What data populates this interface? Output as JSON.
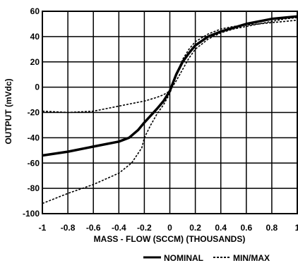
{
  "chart_data": {
    "type": "line",
    "title": "",
    "xlabel": "MASS - FLOW (SCCM)  (THOUSANDS)",
    "ylabel": "OUTPUT (mVdc)",
    "xlim": [
      -1,
      1
    ],
    "ylim": [
      -100,
      60
    ],
    "x_ticks": [
      -1,
      -0.8,
      -0.6,
      -0.4,
      -0.2,
      0,
      0.2,
      0.4,
      0.6,
      0.8,
      1
    ],
    "x_tick_labels": [
      "-1",
      "-0.8",
      "-0.6",
      "-0.4",
      "-0.2",
      "0",
      "0.2",
      "0.4",
      "0.6",
      "0.8",
      "1"
    ],
    "y_ticks": [
      -100,
      -80,
      -60,
      -40,
      -20,
      0,
      20,
      40,
      60
    ],
    "y_tick_labels": [
      "-100",
      "-80",
      "-60",
      "-40",
      "-20",
      "0",
      "20",
      "40",
      "60"
    ],
    "grid": true,
    "legend_position": "bottom-right",
    "series": [
      {
        "name": "NOMINAL",
        "style": "solid",
        "color": "#000000",
        "x": [
          -1,
          -0.8,
          -0.6,
          -0.4,
          -0.32,
          -0.25,
          -0.2,
          -0.1,
          -0.05,
          0,
          0.05,
          0.1,
          0.15,
          0.2,
          0.3,
          0.4,
          0.5,
          0.6,
          0.7,
          0.8,
          0.9,
          1
        ],
        "y": [
          -54,
          -51,
          -47,
          -43,
          -40,
          -34,
          -28,
          -17,
          -11,
          -3,
          10,
          20,
          27,
          33,
          40,
          44,
          47,
          50,
          52,
          54,
          55,
          56
        ]
      },
      {
        "name": "MIN/MAX",
        "style": "dashed",
        "color": "#000000",
        "x": [
          -1,
          -0.8,
          -0.6,
          -0.5,
          -0.4,
          -0.3,
          -0.2,
          -0.1,
          -0.05,
          0,
          0.05,
          0.1,
          0.15,
          0.2,
          0.3,
          0.4,
          0.5,
          0.6,
          0.7,
          0.8,
          0.9,
          1
        ],
        "y": [
          -19,
          -20,
          -19,
          -17,
          -15,
          -13,
          -11,
          -8,
          -6,
          -3,
          5,
          14,
          23,
          30,
          38,
          43,
          46,
          48,
          50,
          52,
          54,
          55
        ]
      },
      {
        "name": "MIN/MAX",
        "style": "dashed",
        "color": "#000000",
        "x": [
          -1,
          -0.8,
          -0.6,
          -0.4,
          -0.3,
          -0.22,
          -0.2,
          -0.15,
          -0.1,
          -0.05,
          0,
          0.05,
          0.1,
          0.15,
          0.2,
          0.3,
          0.4,
          0.5,
          0.6,
          0.7,
          0.8,
          0.9,
          1
        ],
        "y": [
          -92,
          -84,
          -77,
          -68,
          -60,
          -48,
          -40,
          -30,
          -21,
          -14,
          -5,
          10,
          22,
          30,
          36,
          42,
          46,
          48,
          49,
          50,
          51,
          52,
          53
        ]
      }
    ],
    "legend": [
      {
        "label": "NOMINAL",
        "style": "solid"
      },
      {
        "label": "MIN/MAX",
        "style": "dashed"
      }
    ]
  }
}
